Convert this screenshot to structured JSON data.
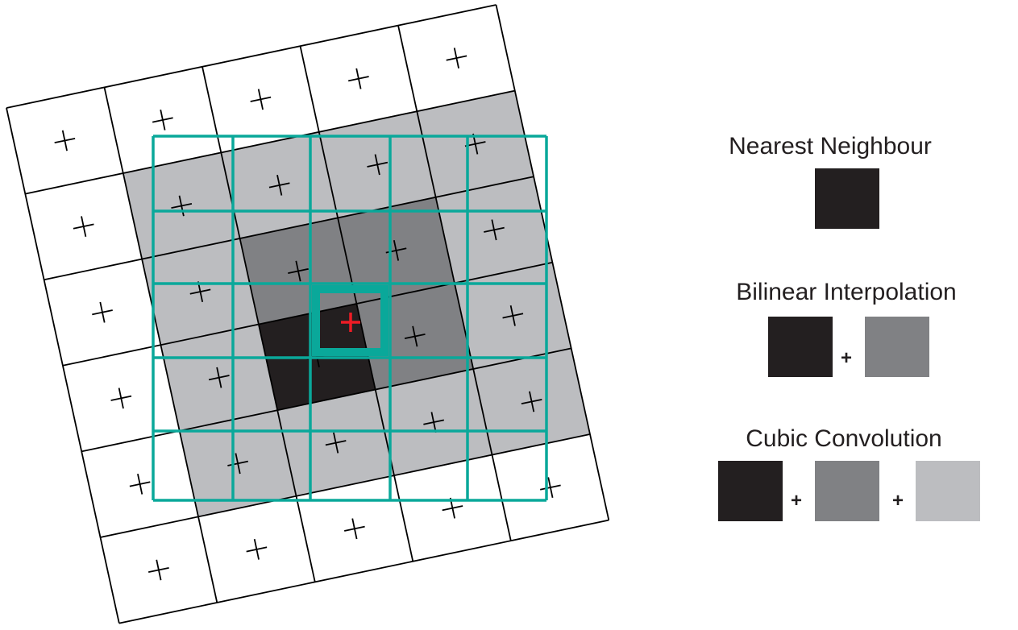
{
  "colors": {
    "nearest": "#231f20",
    "bilinear": "#808184",
    "cubic": "#bcbdc0",
    "target_grid": "#0aa89a",
    "sample_point": "#ee1c25",
    "input_grid": "#000000"
  },
  "input_grid": {
    "rows": 6,
    "cols": 5,
    "cell_center_icon": "plus-icon",
    "shaded_cells": [
      {
        "r": 1,
        "c": 1,
        "level": "cubic"
      },
      {
        "r": 1,
        "c": 2,
        "level": "cubic"
      },
      {
        "r": 1,
        "c": 3,
        "level": "cubic"
      },
      {
        "r": 1,
        "c": 4,
        "level": "cubic"
      },
      {
        "r": 2,
        "c": 1,
        "level": "cubic"
      },
      {
        "r": 2,
        "c": 2,
        "level": "bilinear"
      },
      {
        "r": 2,
        "c": 3,
        "level": "bilinear"
      },
      {
        "r": 2,
        "c": 4,
        "level": "cubic"
      },
      {
        "r": 3,
        "c": 1,
        "level": "cubic"
      },
      {
        "r": 3,
        "c": 2,
        "level": "nearest"
      },
      {
        "r": 3,
        "c": 3,
        "level": "bilinear"
      },
      {
        "r": 3,
        "c": 4,
        "level": "cubic"
      },
      {
        "r": 4,
        "c": 1,
        "level": "cubic"
      },
      {
        "r": 4,
        "c": 2,
        "level": "cubic"
      },
      {
        "r": 4,
        "c": 3,
        "level": "cubic"
      },
      {
        "r": 4,
        "c": 4,
        "level": "cubic"
      }
    ]
  },
  "output_grid": {
    "rows": 5,
    "cols": 5,
    "highlighted_cell": {
      "r": 2,
      "c": 2
    }
  },
  "sample_point_icon": "red-plus-icon",
  "legend": {
    "nearest": {
      "title": "Nearest Neighbour",
      "swatches": [
        "nearest"
      ]
    },
    "bilinear": {
      "title": "Bilinear Interpolation",
      "plus": "+",
      "swatches": [
        "nearest",
        "bilinear"
      ]
    },
    "cubic": {
      "title": "Cubic Convolution",
      "plus": "+",
      "swatches": [
        "nearest",
        "bilinear",
        "cubic"
      ]
    }
  }
}
